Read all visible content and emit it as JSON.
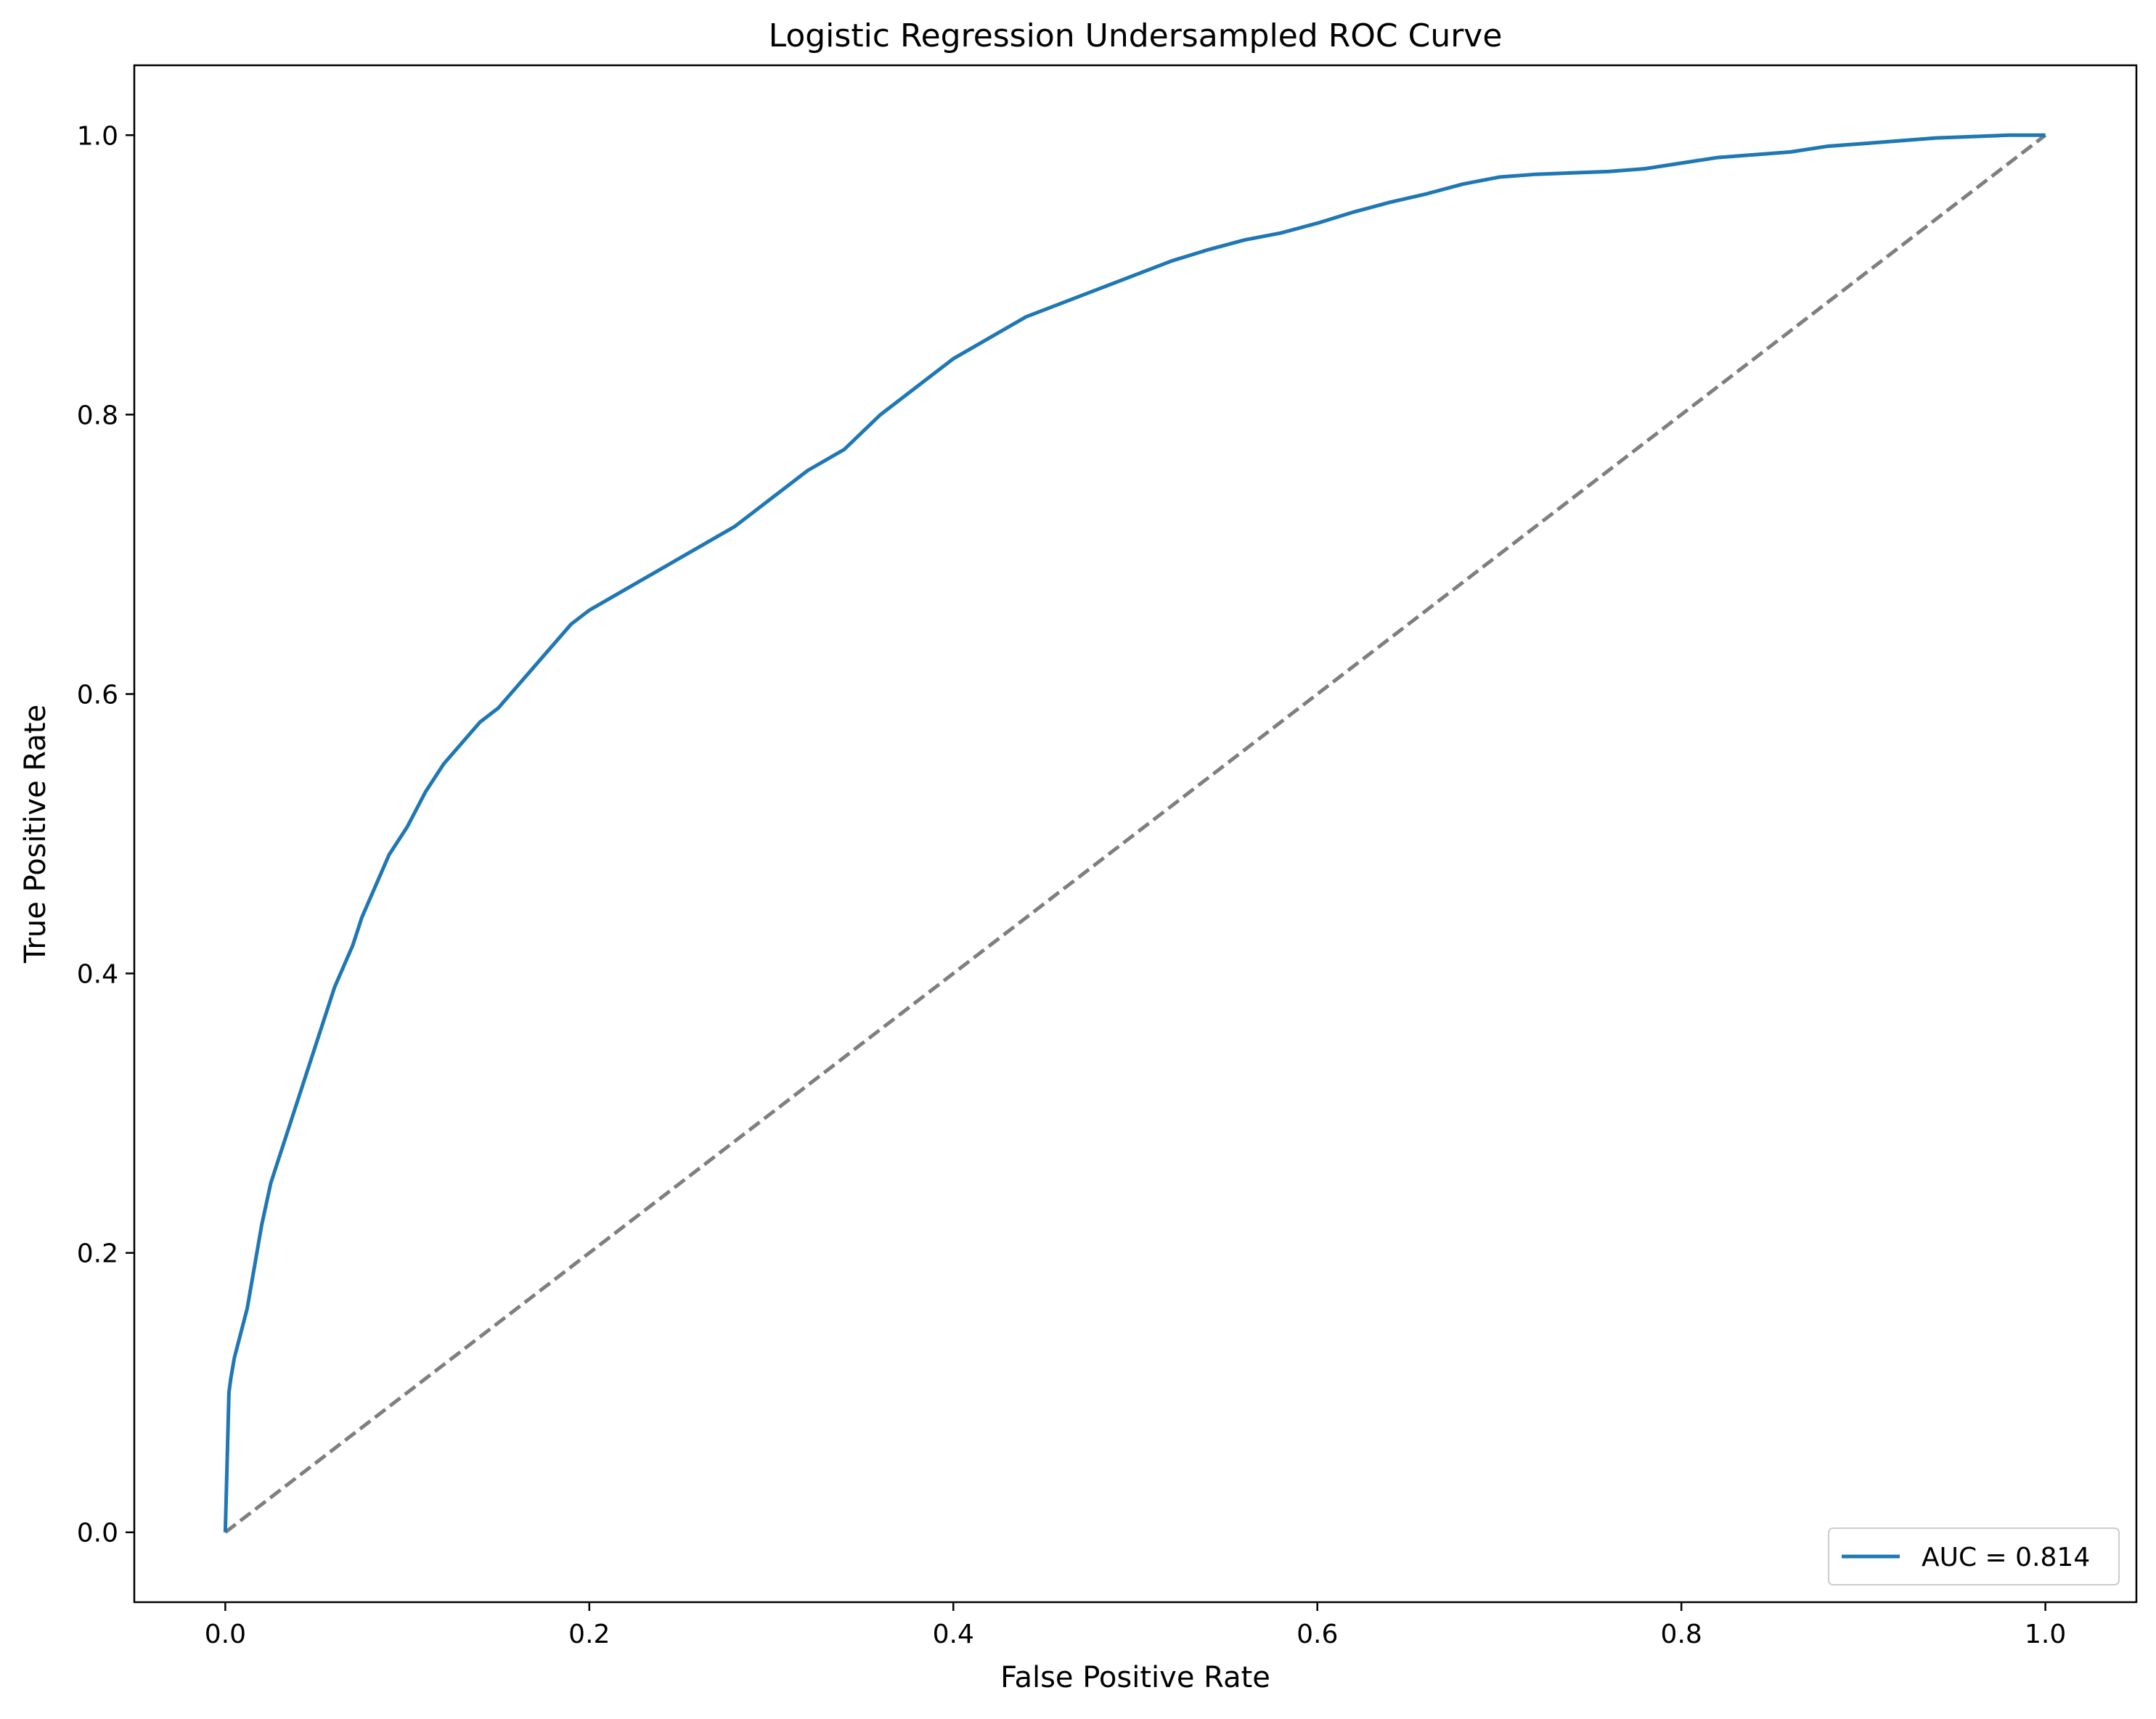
{
  "chart_data": {
    "type": "line",
    "title": "Logistic Regression Undersampled ROC Curve",
    "xlabel": "False Positive Rate",
    "ylabel": "True Positive Rate",
    "xlim": [
      -0.05,
      1.05
    ],
    "ylim": [
      -0.05,
      1.05
    ],
    "x_ticks": [
      0.0,
      0.2,
      0.4,
      0.6,
      0.8,
      1.0
    ],
    "y_ticks": [
      0.0,
      0.2,
      0.4,
      0.6,
      0.8,
      1.0
    ],
    "x_tick_labels": [
      "0.0",
      "0.2",
      "0.4",
      "0.6",
      "0.8",
      "1.0"
    ],
    "y_tick_labels": [
      "0.0",
      "0.2",
      "0.4",
      "0.6",
      "0.8",
      "1.0"
    ],
    "grid": false,
    "legend_position": "lower-right",
    "series": [
      {
        "name": "AUC = 0.814",
        "color": "#1f77b4",
        "style": "solid",
        "x": [
          0.0,
          0.001,
          0.002,
          0.003,
          0.005,
          0.008,
          0.012,
          0.016,
          0.02,
          0.025,
          0.03,
          0.035,
          0.04,
          0.045,
          0.05,
          0.055,
          0.06,
          0.065,
          0.07,
          0.075,
          0.08,
          0.085,
          0.09,
          0.095,
          0.1,
          0.11,
          0.12,
          0.13,
          0.14,
          0.15,
          0.16,
          0.17,
          0.18,
          0.19,
          0.2,
          0.22,
          0.24,
          0.26,
          0.28,
          0.3,
          0.32,
          0.34,
          0.36,
          0.38,
          0.4,
          0.42,
          0.44,
          0.46,
          0.48,
          0.5,
          0.52,
          0.54,
          0.56,
          0.58,
          0.6,
          0.62,
          0.64,
          0.66,
          0.68,
          0.7,
          0.72,
          0.74,
          0.76,
          0.78,
          0.8,
          0.82,
          0.84,
          0.86,
          0.88,
          0.9,
          0.92,
          0.94,
          0.96,
          0.98,
          1.0
        ],
        "y": [
          0.0,
          0.05,
          0.1,
          0.11,
          0.125,
          0.14,
          0.16,
          0.19,
          0.22,
          0.25,
          0.27,
          0.29,
          0.31,
          0.33,
          0.35,
          0.37,
          0.39,
          0.405,
          0.42,
          0.44,
          0.455,
          0.47,
          0.485,
          0.495,
          0.505,
          0.53,
          0.55,
          0.565,
          0.58,
          0.59,
          0.605,
          0.62,
          0.635,
          0.65,
          0.66,
          0.675,
          0.69,
          0.705,
          0.72,
          0.74,
          0.76,
          0.775,
          0.8,
          0.82,
          0.84,
          0.855,
          0.87,
          0.88,
          0.89,
          0.9,
          0.91,
          0.918,
          0.925,
          0.93,
          0.937,
          0.945,
          0.952,
          0.958,
          0.965,
          0.97,
          0.972,
          0.973,
          0.974,
          0.976,
          0.98,
          0.984,
          0.986,
          0.988,
          0.992,
          0.994,
          0.996,
          0.998,
          0.999,
          1.0,
          1.0
        ]
      },
      {
        "color": "#7f7f7f",
        "style": "dashed",
        "x": [
          0.0,
          1.0
        ],
        "y": [
          0.0,
          1.0
        ]
      }
    ]
  }
}
